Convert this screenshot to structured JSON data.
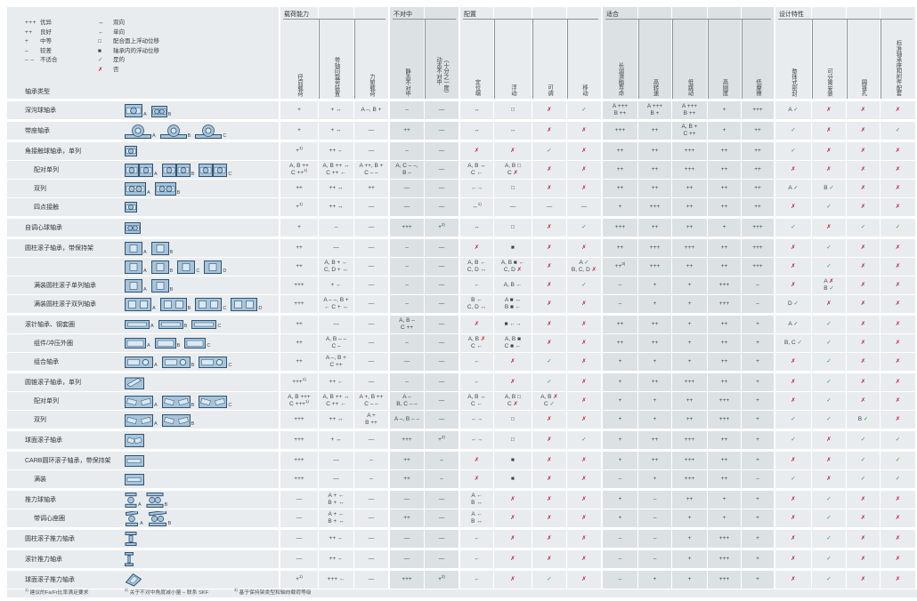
{
  "colors": {
    "check": "#1e9e50",
    "cross": "#c0223b",
    "cell": "#e9ecee",
    "shade": "#dce1e4",
    "icon_fill": "#a7c4da",
    "icon_stroke": "#2e5375",
    "icon_inner": "#dae8f2"
  },
  "legend": {
    "ratings": [
      {
        "sym": "+++",
        "label": "优异"
      },
      {
        "sym": "++",
        "label": "良好"
      },
      {
        "sym": "+",
        "label": "中等"
      },
      {
        "sym": "–",
        "label": "较差"
      },
      {
        "sym": "– –",
        "label": "不适合"
      }
    ],
    "symbols": [
      {
        "sym": "↔",
        "label": "双向"
      },
      {
        "sym": "←",
        "label": "单向"
      },
      {
        "sym": "□",
        "label": "配合面上浮动位移"
      },
      {
        "sym": "■",
        "label": "轴承内的浮动位移"
      },
      {
        "sym": "✓",
        "label": "是的"
      },
      {
        "sym": "✗",
        "label": "否"
      }
    ]
  },
  "table": {
    "corner_label": "轴承类型",
    "groups": [
      {
        "label": "载荷能力",
        "start": 0,
        "end": 2,
        "shaded": false
      },
      {
        "label": "不对中",
        "start": 3,
        "end": 4,
        "shaded": true
      },
      {
        "label": "配置",
        "start": 5,
        "end": 8,
        "shaded": false
      },
      {
        "label": "适合",
        "start": 9,
        "end": 13,
        "shaded": true
      },
      {
        "label": "设计特性",
        "start": 14,
        "end": 17,
        "shaded": false
      }
    ],
    "columns": [
      "径向载荷",
      "带轴向载荷装置",
      "力矩载荷",
      "静态不对中",
      "动态不对中\n（十分之一度）",
      "定位端",
      "浮动",
      "可调",
      "移动",
      "长润滑脂寿命",
      "高转速",
      "低跳动",
      "高刚度",
      "低摩擦",
      "整体式密封",
      "可分离安装",
      "圆锥孔",
      "标准轴承座和附件配套"
    ],
    "shaded_columns": [
      3,
      4,
      9,
      10,
      11,
      12,
      13
    ],
    "rows": [
      {
        "label": "深沟球轴承",
        "indent": false,
        "family_start": true,
        "icons": [
          {
            "type": "ball1",
            "tag": "A"
          },
          {
            "type": "ball2s",
            "tag": "B"
          }
        ],
        "cells": [
          "+",
          "+ ↔",
          "A –, B +",
          "–",
          "—",
          "↔",
          "□",
          "✗",
          "✓",
          "A +++\nB ++",
          "A +++\nB +",
          "A +++\nB ++",
          "+",
          "+++",
          "A ✓",
          "✗",
          "✗",
          "✗"
        ]
      },
      {
        "label": "带座轴承",
        "indent": false,
        "family_start": true,
        "icons": [
          {
            "type": "housed",
            "tag": "A"
          },
          {
            "type": "housed",
            "tag": "B"
          },
          {
            "type": "housed",
            "tag": "C"
          }
        ],
        "cells": [
          "+",
          "+ ↔",
          "—",
          "++",
          "—",
          "↔",
          "↔",
          "✗",
          "✗",
          "+++",
          "++",
          "A, B +\nC ++",
          "+",
          "++",
          "✓",
          "✗",
          "✗",
          "✓"
        ]
      },
      {
        "label": "角接触球轴承，单列",
        "indent": false,
        "family_start": true,
        "icons": [
          {
            "type": "ball1s",
            "tag": ""
          }
        ],
        "cells": [
          "+1)",
          "++ ←",
          "—",
          "–",
          "—",
          "✗",
          "✗",
          "✓",
          "✗",
          "++",
          "++",
          "+++",
          "++",
          "++",
          "✓",
          "✗",
          "✗",
          "✗"
        ]
      },
      {
        "label": "配对单列",
        "indent": true,
        "family_start": false,
        "icons": [
          {
            "type": "ballpair",
            "tag": "A"
          },
          {
            "type": "ballpair",
            "tag": "B"
          },
          {
            "type": "ballpair",
            "tag": "C"
          }
        ],
        "cells": [
          "A, B ++\nC ++1)",
          "A, B ++ ↔\nC ++ ←",
          "A ++, B +\nC – –",
          "A, C – –,\nB –",
          "—",
          "A, B ↔\nC ←",
          "A, B □\nC ✗",
          "✗",
          "✗",
          "++",
          "++",
          "+++",
          "++",
          "++",
          "✗",
          "✗",
          "✗",
          "✗"
        ]
      },
      {
        "label": "双列",
        "indent": true,
        "family_start": false,
        "icons": [
          {
            "type": "ball2",
            "tag": "A"
          },
          {
            "type": "ball2",
            "tag": "B"
          }
        ],
        "cells": [
          "++",
          "++ ↔",
          "++",
          "—",
          "—",
          "←→",
          "□",
          "✗",
          "✗",
          "++",
          "++",
          "++",
          "++",
          "++",
          "A ✓",
          "B ✓",
          "✗",
          "✗"
        ]
      },
      {
        "label": "四点接触",
        "indent": true,
        "family_start": false,
        "icons": [
          {
            "type": "ball1s",
            "tag": ""
          }
        ],
        "cells": [
          "+1)",
          "++ ↔",
          "—",
          "—",
          "—",
          "↔1)",
          "—",
          "—",
          "—",
          "+",
          "+++",
          "++",
          "++",
          "++",
          "✗",
          "✓",
          "✗",
          "✗"
        ]
      },
      {
        "label": "自调心球轴承",
        "indent": false,
        "family_start": true,
        "icons": [
          {
            "type": "ball2s",
            "tag": ""
          }
        ],
        "cells": [
          "+",
          "–",
          "—",
          "+++",
          "+2)",
          "↔",
          "□",
          "✗",
          "✓",
          "+++",
          "++",
          "++",
          "+",
          "+++",
          "✓",
          "✗",
          "✓",
          "✓"
        ]
      },
      {
        "label": "圆柱滚子轴承，带保持架",
        "indent": false,
        "family_start": true,
        "icons": [
          {
            "type": "roller1",
            "tag": "A"
          },
          {
            "type": "roller1",
            "tag": "B"
          }
        ],
        "cells": [
          "++",
          "—",
          "—",
          "–",
          "—",
          "✗",
          "■",
          "✗",
          "✗",
          "++",
          "+++",
          "+++",
          "++",
          "+++",
          "✗",
          "✓",
          "✗",
          "✗"
        ]
      },
      {
        "label": "",
        "indent": false,
        "family_start": false,
        "icons": [
          {
            "type": "roller1",
            "tag": "A"
          },
          {
            "type": "roller1",
            "tag": "B"
          },
          {
            "type": "roller1",
            "tag": "C"
          },
          {
            "type": "roller1",
            "tag": "D"
          }
        ],
        "cells": [
          "++",
          "A, B + ←\nC, D + ↔",
          "—",
          "–",
          "—",
          "A, B ←\nC, D ↔",
          "A, B ■ ←\nC, D ✗",
          "✗",
          "A ✓\nB, C, D ✗",
          "++3)",
          "+++",
          "++",
          "++",
          "+++",
          "✗",
          "✓",
          "✗",
          "✗"
        ]
      },
      {
        "label": "满装圆柱滚子单列轴承",
        "indent": true,
        "family_start": false,
        "icons": [
          {
            "type": "roller1",
            "tag": "A"
          },
          {
            "type": "roller1",
            "tag": "B"
          }
        ],
        "cells": [
          "+++",
          "+ ←",
          "—",
          "–",
          "—",
          "←",
          "A, B ←",
          "✗",
          "✓",
          "–",
          "+",
          "+",
          "+++",
          "–",
          "✗",
          "A ✗\nB ✓",
          "✗",
          "✗"
        ]
      },
      {
        "label": "满装圆柱滚子双列轴承",
        "indent": true,
        "family_start": false,
        "icons": [
          {
            "type": "roller2",
            "tag": "A"
          },
          {
            "type": "roller2",
            "tag": "B"
          },
          {
            "type": "roller2",
            "tag": "C"
          },
          {
            "type": "roller2",
            "tag": "D"
          }
        ],
        "cells": [
          "+++",
          "A – –, B +\n← C + ↔",
          "—",
          "–",
          "—",
          "B ←\nC, D ↔",
          "A ■ ↔\nB ■ ←",
          "✗",
          "✗",
          "–",
          "+",
          "+",
          "+++",
          "–",
          "D ✓",
          "✗",
          "✗",
          "✗"
        ]
      },
      {
        "label": "滚针轴承、钢套圈",
        "indent": false,
        "family_start": true,
        "icons": [
          {
            "type": "needle",
            "tag": "A"
          },
          {
            "type": "needle",
            "tag": "B"
          },
          {
            "type": "needle",
            "tag": "C"
          }
        ],
        "cells": [
          "++",
          "—",
          "—",
          "A, B –\nC ++",
          "—",
          "✗",
          "■ ←→",
          "✗",
          "✗",
          "++",
          "++",
          "+",
          "++",
          "+",
          "A ✓",
          "✓",
          "✗",
          "✗"
        ]
      },
      {
        "label": "组件/冲压外圈",
        "indent": true,
        "family_start": false,
        "icons": [
          {
            "type": "cup",
            "tag": "A"
          },
          {
            "type": "cup",
            "tag": "B"
          },
          {
            "type": "cup",
            "tag": "C"
          }
        ],
        "cells": [
          "++",
          "A, B – –\nC –",
          "—",
          "–",
          "—",
          "A, B ✗\nC ←",
          "A, B ■\nC ■ ←",
          "✗",
          "✗",
          "++",
          "++",
          "+",
          "++",
          "+",
          "B, C ✓",
          "✓",
          "✗",
          "✗"
        ]
      },
      {
        "label": "组合轴承",
        "indent": true,
        "family_start": false,
        "icons": [
          {
            "type": "combo",
            "tag": "A"
          },
          {
            "type": "combo",
            "tag": "B"
          },
          {
            "type": "combo",
            "tag": "C"
          }
        ],
        "cells": [
          "++",
          "A –, B +\nC ++",
          "—",
          "—",
          "—",
          "←",
          "✗",
          "✓",
          "✗",
          "+",
          "+",
          "+",
          "++",
          "+",
          "✗",
          "✓",
          "✗",
          "✗"
        ]
      },
      {
        "label": "圆锥滚子轴承，单列",
        "indent": false,
        "family_start": true,
        "icons": [
          {
            "type": "taper1",
            "tag": ""
          }
        ],
        "cells": [
          "+++1)",
          "++ ←",
          "—",
          "–",
          "—",
          "←",
          "✗",
          "✓",
          "✗",
          "+",
          "++",
          "+++",
          "++",
          "+",
          "✗",
          "✓",
          "✗",
          "✗"
        ]
      },
      {
        "label": "配对单列",
        "indent": true,
        "family_start": false,
        "icons": [
          {
            "type": "taper2",
            "tag": "A"
          },
          {
            "type": "taper2",
            "tag": "B"
          },
          {
            "type": "taper2",
            "tag": "C"
          }
        ],
        "cells": [
          "A, B +++\nC +++1)",
          "A, B ++ ↔\nC ++ ←",
          "A +, B ++\nC – –",
          "A –\nB, C – –",
          "—",
          "A, B ↔\nC ←",
          "A, B □\nC ✗",
          "A, B ✗\nC ✓",
          "✗",
          "+",
          "+",
          "++",
          "+++",
          "+",
          "✗",
          "✓",
          "✗",
          "✗"
        ]
      },
      {
        "label": "双列",
        "indent": true,
        "family_start": false,
        "icons": [
          {
            "type": "taper2",
            "tag": "A"
          },
          {
            "type": "taper2",
            "tag": "B"
          }
        ],
        "cells": [
          "+++",
          "++ ↔",
          "A +\nB ++",
          "A –, B – –",
          "—",
          "←→",
          "□",
          "✗",
          "✗",
          "+",
          "+",
          "++",
          "+++",
          "+",
          "✓",
          "✓",
          "B ✓",
          "✗"
        ]
      },
      {
        "label": "球面滚子轴承",
        "indent": false,
        "family_start": true,
        "icons": [
          {
            "type": "sphr",
            "tag": ""
          }
        ],
        "cells": [
          "+++",
          "+ ↔",
          "—",
          "+++",
          "+2)",
          "←→",
          "□",
          "✗",
          "✓",
          "+",
          "++",
          "+++",
          "++",
          "+",
          "✓",
          "✗",
          "✓",
          "✓"
        ]
      },
      {
        "label": "CARB圆环滚子轴承，带保持架",
        "indent": false,
        "family_start": true,
        "icons": [
          {
            "type": "carb",
            "tag": ""
          }
        ],
        "cells": [
          "+++",
          "—",
          "–",
          "++",
          "–",
          "✗",
          "■",
          "✗",
          "✗",
          "+",
          "++",
          "+++",
          "++",
          "+",
          "✗",
          "✗",
          "✓",
          "✓"
        ]
      },
      {
        "label": "满装",
        "indent": true,
        "family_start": false,
        "icons": [
          {
            "type": "carb",
            "tag": ""
          }
        ],
        "cells": [
          "+++",
          "—",
          "–",
          "++",
          "–",
          "✗",
          "■",
          "✗",
          "✗",
          "–",
          "+",
          "+++",
          "++",
          "–",
          "✓",
          "✗",
          "✓",
          "✓"
        ]
      },
      {
        "label": "推力球轴承",
        "indent": false,
        "family_start": true,
        "icons": [
          {
            "type": "thrust",
            "tag": "A"
          },
          {
            "type": "thrust2",
            "tag": "B"
          }
        ],
        "cells": [
          "—",
          "A + ←\nB + ↔",
          "—",
          "—",
          "—",
          "A ←\nB ↔",
          "✗",
          "✗",
          "✗",
          "+",
          "–",
          "++",
          "+",
          "+",
          "✗",
          "✓",
          "✗",
          "✗"
        ]
      },
      {
        "label": "带调心座圈",
        "indent": true,
        "family_start": false,
        "icons": [
          {
            "type": "thrustsw",
            "tag": "A"
          },
          {
            "type": "thrustsw2",
            "tag": "B"
          }
        ],
        "cells": [
          "—",
          "A + ←\nB + ↔",
          "—",
          "++",
          "—",
          "A ←\nB ↔",
          "✗",
          "✗",
          "✗",
          "+",
          "–",
          "+",
          "+",
          "+",
          "✗",
          "✓",
          "✗",
          "✗"
        ]
      },
      {
        "label": "圆柱滚子推力轴承",
        "indent": false,
        "family_start": true,
        "icons": [
          {
            "type": "thrustroller",
            "tag": ""
          }
        ],
        "cells": [
          "—",
          "++ ←",
          "—",
          "—",
          "—",
          "←",
          "✗",
          "✗",
          "✗",
          "–",
          "–",
          "+",
          "+++",
          "+",
          "✗",
          "✓",
          "✗",
          "✗"
        ]
      },
      {
        "label": "滚针推力轴承",
        "indent": false,
        "family_start": true,
        "icons": [
          {
            "type": "thrustneedle",
            "tag": ""
          }
        ],
        "cells": [
          "—",
          "++ ←",
          "—",
          "—",
          "—",
          "←",
          "✗",
          "✗",
          "✗",
          "–",
          "–",
          "+",
          "+++",
          "+",
          "✗",
          "✓",
          "✗",
          "✗"
        ]
      },
      {
        "label": "球面滚子推力轴承",
        "indent": false,
        "family_start": true,
        "icons": [
          {
            "type": "sphthrust",
            "tag": ""
          }
        ],
        "cells": [
          "+1)",
          "+++ ←",
          "—",
          "+++",
          "+2)",
          "←",
          "✗",
          "✓",
          "✗",
          "–",
          "+",
          "+",
          "+++",
          "+",
          "✗",
          "✓",
          "✗",
          "✗"
        ]
      }
    ]
  },
  "footnotes": [
    {
      "mark": "1)",
      "text": "建议的Fa/Fr比率满足要求"
    },
    {
      "mark": "2)",
      "text": "关于不对中角度减小量 – 联系 SKF"
    },
    {
      "mark": "3)",
      "text": "基于保持架类型和轴向载荷等级"
    }
  ]
}
